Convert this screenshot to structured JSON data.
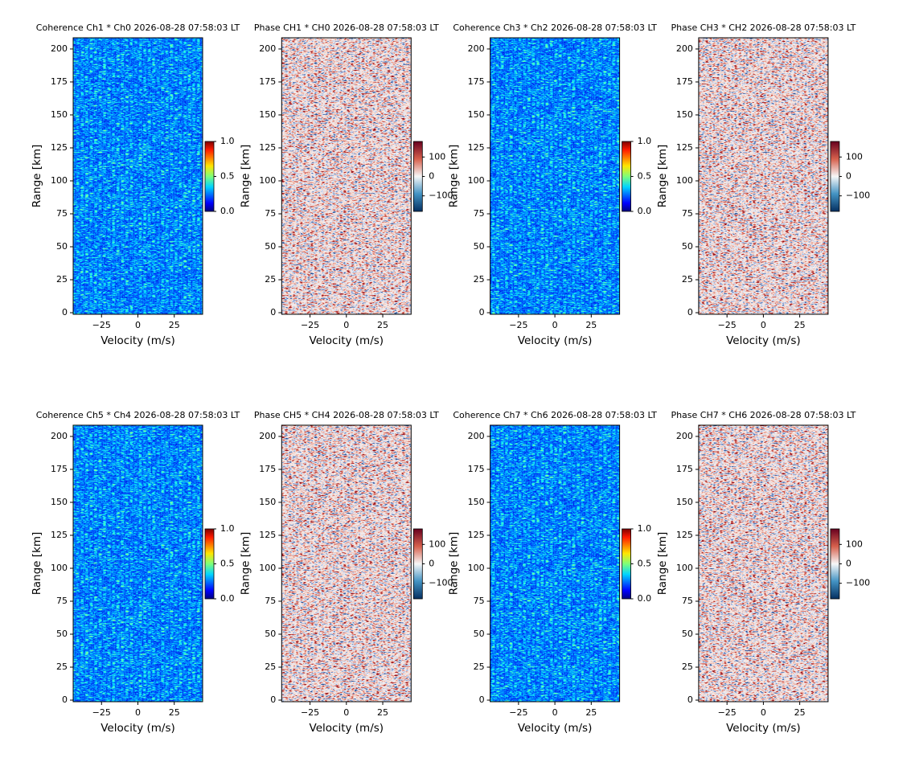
{
  "chart_data": [
    {
      "type": "heatmap",
      "title": "Coherence Ch1 * Ch0 2026-08-28 07:58:03 LT",
      "xlabel": "Velocity (m/s)",
      "ylabel": "Range [km]",
      "xlim": [
        -44.5,
        44.5
      ],
      "ylim": [
        -1.2,
        208.5
      ],
      "xticks": [
        {
          "value": -25,
          "label": "−25"
        },
        0,
        25
      ],
      "yticks": [
        0,
        25,
        50,
        75,
        100,
        125,
        150,
        175,
        200
      ],
      "colormap": "jet",
      "clim": [
        0,
        1
      ],
      "cticks": [
        {
          "value": 0,
          "label": "0.0"
        },
        0.5,
        {
          "value": 1,
          "label": "1.0"
        }
      ]
    },
    {
      "type": "heatmap",
      "title": "Phase CH1 * CH0 2026-08-28 07:58:03 LT",
      "xlabel": "Velocity (m/s)",
      "ylabel": "Range [km]",
      "xlim": [
        -44.5,
        44.5
      ],
      "ylim": [
        -1.2,
        208.5
      ],
      "xticks": [
        {
          "value": -25,
          "label": "−25"
        },
        0,
        25
      ],
      "yticks": [
        0,
        25,
        50,
        75,
        100,
        125,
        150,
        175,
        200
      ],
      "colormap": "RdBu_r",
      "clim": [
        -180,
        180
      ],
      "cticks": [
        {
          "value": -100,
          "label": "−100"
        },
        0,
        100
      ]
    },
    {
      "type": "heatmap",
      "title": "Coherence Ch3 * Ch2 2026-08-28 07:58:03 LT",
      "xlabel": "Velocity (m/s)",
      "ylabel": "Range [km]",
      "xlim": [
        -44.5,
        44.5
      ],
      "ylim": [
        -1.2,
        208.5
      ],
      "xticks": [
        {
          "value": -25,
          "label": "−25"
        },
        0,
        25
      ],
      "yticks": [
        0,
        25,
        50,
        75,
        100,
        125,
        150,
        175,
        200
      ],
      "colormap": "jet",
      "clim": [
        0,
        1
      ],
      "cticks": [
        {
          "value": 0,
          "label": "0.0"
        },
        0.5,
        {
          "value": 1,
          "label": "1.0"
        }
      ]
    },
    {
      "type": "heatmap",
      "title": "Phase CH3 * CH2 2026-08-28 07:58:03 LT",
      "xlabel": "Velocity (m/s)",
      "ylabel": "Range [km]",
      "xlim": [
        -44.5,
        44.5
      ],
      "ylim": [
        -1.2,
        208.5
      ],
      "xticks": [
        {
          "value": -25,
          "label": "−25"
        },
        0,
        25
      ],
      "yticks": [
        0,
        25,
        50,
        75,
        100,
        125,
        150,
        175,
        200
      ],
      "colormap": "RdBu_r",
      "clim": [
        -180,
        180
      ],
      "cticks": [
        {
          "value": -100,
          "label": "−100"
        },
        0,
        100
      ]
    },
    {
      "type": "heatmap",
      "title": "Coherence Ch5 * Ch4 2026-08-28 07:58:03 LT",
      "xlabel": "Velocity (m/s)",
      "ylabel": "Range [km]",
      "xlim": [
        -44.5,
        44.5
      ],
      "ylim": [
        -1.2,
        208.5
      ],
      "xticks": [
        {
          "value": -25,
          "label": "−25"
        },
        0,
        25
      ],
      "yticks": [
        0,
        25,
        50,
        75,
        100,
        125,
        150,
        175,
        200
      ],
      "colormap": "jet",
      "clim": [
        0,
        1
      ],
      "cticks": [
        {
          "value": 0,
          "label": "0.0"
        },
        0.5,
        {
          "value": 1,
          "label": "1.0"
        }
      ]
    },
    {
      "type": "heatmap",
      "title": "Phase CH5 * CH4 2026-08-28 07:58:03 LT",
      "xlabel": "Velocity (m/s)",
      "ylabel": "Range [km]",
      "xlim": [
        -44.5,
        44.5
      ],
      "ylim": [
        -1.2,
        208.5
      ],
      "xticks": [
        {
          "value": -25,
          "label": "−25"
        },
        0,
        25
      ],
      "yticks": [
        0,
        25,
        50,
        75,
        100,
        125,
        150,
        175,
        200
      ],
      "colormap": "RdBu_r",
      "clim": [
        -180,
        180
      ],
      "cticks": [
        {
          "value": -100,
          "label": "−100"
        },
        0,
        100
      ]
    },
    {
      "type": "heatmap",
      "title": "Coherence Ch7 * Ch6 2026-08-28 07:58:03 LT",
      "xlabel": "Velocity (m/s)",
      "ylabel": "Range [km]",
      "xlim": [
        -44.5,
        44.5
      ],
      "ylim": [
        -1.2,
        208.5
      ],
      "xticks": [
        {
          "value": -25,
          "label": "−25"
        },
        0,
        25
      ],
      "yticks": [
        0,
        25,
        50,
        75,
        100,
        125,
        150,
        175,
        200
      ],
      "colormap": "jet",
      "clim": [
        0,
        1
      ],
      "cticks": [
        {
          "value": 0,
          "label": "0.0"
        },
        0.5,
        {
          "value": 1,
          "label": "1.0"
        }
      ]
    },
    {
      "type": "heatmap",
      "title": "Phase CH7 * CH6 2026-08-28 07:58:03 LT",
      "xlabel": "Velocity (m/s)",
      "ylabel": "Range [km]",
      "xlim": [
        -44.5,
        44.5
      ],
      "ylim": [
        -1.2,
        208.5
      ],
      "xticks": [
        {
          "value": -25,
          "label": "−25"
        },
        0,
        25
      ],
      "yticks": [
        0,
        25,
        50,
        75,
        100,
        125,
        150,
        175,
        200
      ],
      "colormap": "RdBu_r",
      "clim": [
        -180,
        180
      ],
      "cticks": [
        {
          "value": -100,
          "label": "−100"
        },
        0,
        100
      ]
    }
  ]
}
